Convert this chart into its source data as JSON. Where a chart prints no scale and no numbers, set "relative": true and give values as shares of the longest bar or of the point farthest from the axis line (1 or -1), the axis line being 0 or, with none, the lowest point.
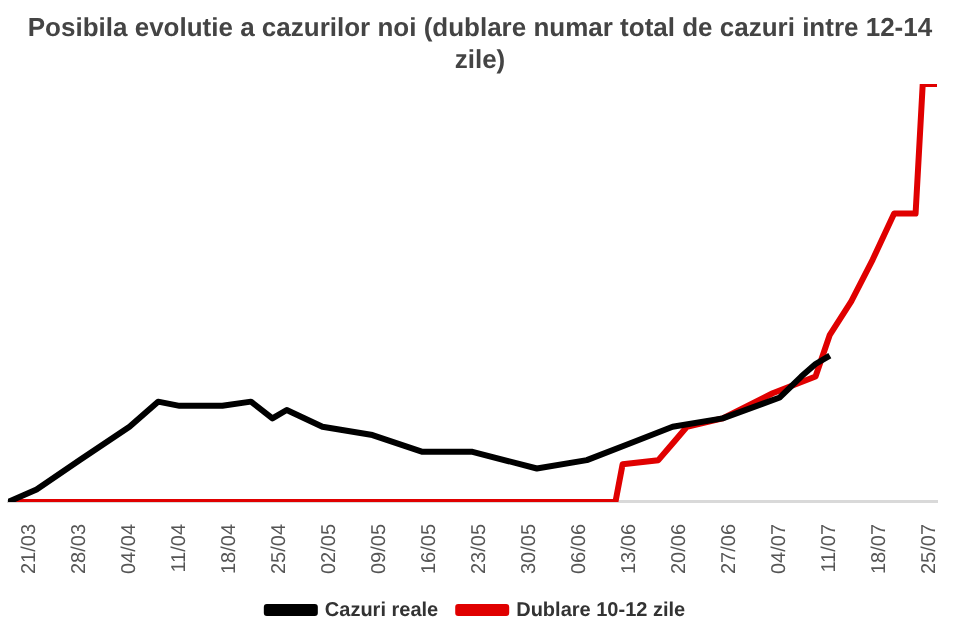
{
  "chart_data": {
    "type": "line",
    "title": "Posibila evolutie a cazurilor noi (dublare numar total de cazuri intre 12-14 zile)",
    "relative": true,
    "legend": "bottom",
    "xlim": [
      "--03-18",
      "--07-26"
    ],
    "xticks": [
      {
        "value": "--03-21",
        "label": "21/03"
      },
      {
        "value": "--03-28",
        "label": "28/03"
      },
      {
        "value": "--04-04",
        "label": "04/04"
      },
      {
        "value": "--04-11",
        "label": "11/04"
      },
      {
        "value": "--04-18",
        "label": "18/04"
      },
      {
        "value": "--04-25",
        "label": "25/04"
      },
      {
        "value": "--05-02",
        "label": "02/05"
      },
      {
        "value": "--05-09",
        "label": "09/05"
      },
      {
        "value": "--05-16",
        "label": "16/05"
      },
      {
        "value": "--05-23",
        "label": "23/05"
      },
      {
        "value": "--05-30",
        "label": "30/05"
      },
      {
        "value": "--06-06",
        "label": "06/06"
      },
      {
        "value": "--06-13",
        "label": "13/06"
      },
      {
        "value": "--06-20",
        "label": "20/06"
      },
      {
        "value": "--06-27",
        "label": "27/06"
      },
      {
        "value": "--07-04",
        "label": "04/07"
      },
      {
        "value": "--07-11",
        "label": "11/07"
      },
      {
        "value": "--07-18",
        "label": "18/07"
      },
      {
        "value": "--07-25",
        "label": "25/07"
      }
    ],
    "series": [
      {
        "name": "Cazuri reale",
        "color": "#000000",
        "x": [
          "--03-18",
          "--03-22",
          "--03-28",
          "--04-04",
          "--04-08",
          "--04-11",
          "--04-17",
          "--04-21",
          "--04-24",
          "--04-26",
          "--05-01",
          "--05-08",
          "--05-15",
          "--05-22",
          "--05-31",
          "--06-07",
          "--06-13",
          "--06-19",
          "--06-26",
          "--07-04",
          "--07-07",
          "--07-09",
          "--07-11"
        ],
        "values": [
          0,
          0.03,
          0.1,
          0.18,
          0.24,
          0.23,
          0.23,
          0.24,
          0.2,
          0.22,
          0.18,
          0.16,
          0.12,
          0.12,
          0.08,
          0.1,
          0.14,
          0.18,
          0.2,
          0.25,
          0.3,
          0.33,
          0.35
        ]
      },
      {
        "name": "Dublare 10-12 zile",
        "color": "#e00000",
        "x": [
          "--03-18",
          "--06-11",
          "--06-12",
          "--06-17",
          "--06-19",
          "--06-21",
          "--06-26",
          "--07-03",
          "--07-09",
          "--07-11",
          "--07-14",
          "--07-17",
          "--07-20",
          "--07-23",
          "--07-24",
          "--07-26"
        ],
        "values": [
          0,
          0,
          0.09,
          0.1,
          0.14,
          0.18,
          0.2,
          0.26,
          0.3,
          0.4,
          0.48,
          0.58,
          0.69,
          0.69,
          1,
          1
        ]
      }
    ]
  }
}
